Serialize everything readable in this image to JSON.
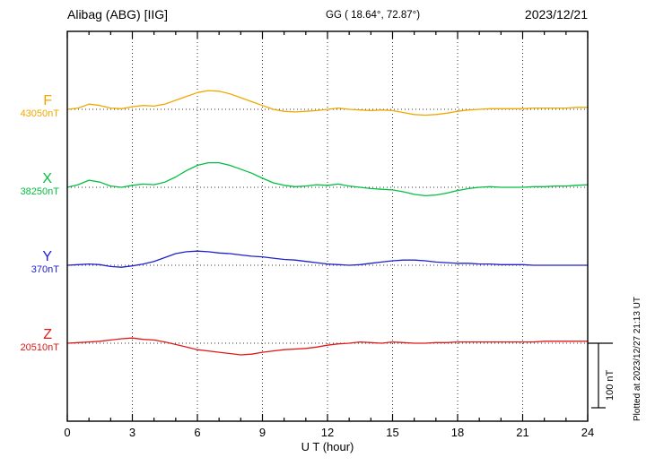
{
  "header": {
    "station": "Alibag (ABG)  [IIG]",
    "coords": "GG ( 18.64°,  72.87°)",
    "date": "2023/12/21"
  },
  "footer": {
    "xlabel": "U T (hour)",
    "plotted_note": "Plotted at 2023/12/27 21:13 UT",
    "scale_bar_label": "100 nT"
  },
  "colors": {
    "F": "#f0a800",
    "X": "#00c040",
    "Y": "#2020cc",
    "Z": "#e01818",
    "axis": "#000000",
    "grid": "#333333"
  },
  "chart_data": {
    "type": "line",
    "title": "Alibag (ABG) [IIG] magnetogram",
    "xlabel": "U T (hour)",
    "xlim": [
      0,
      24
    ],
    "xticks": [
      0,
      3,
      6,
      9,
      12,
      15,
      18,
      21,
      24
    ],
    "x_step_hours": 0.5,
    "grid": "vertical-dotted-at-3h",
    "scale_bar_nT": 100,
    "series": [
      {
        "name": "F",
        "baseline_label": "43050nT",
        "color": "#f0a800",
        "values_nT": [
          0,
          2,
          8,
          6,
          2,
          1,
          4,
          6,
          5,
          8,
          14,
          20,
          26,
          29,
          28,
          24,
          18,
          12,
          6,
          0,
          -3,
          -4,
          -3,
          -2,
          0,
          2,
          0,
          -1,
          -2,
          -1,
          -2,
          -5,
          -8,
          -9,
          -8,
          -6,
          -3,
          -1,
          0,
          1,
          1,
          1,
          1,
          2,
          2,
          2,
          2,
          3,
          3
        ]
      },
      {
        "name": "X",
        "baseline_label": "38250nT",
        "color": "#00c040",
        "values_nT": [
          0,
          4,
          11,
          8,
          2,
          0,
          3,
          5,
          4,
          8,
          16,
          26,
          34,
          38,
          38,
          34,
          28,
          22,
          14,
          7,
          3,
          1,
          2,
          4,
          3,
          5,
          2,
          0,
          -2,
          -3,
          -4,
          -7,
          -11,
          -13,
          -12,
          -9,
          -5,
          -2,
          0,
          1,
          0,
          0,
          0,
          1,
          1,
          2,
          2,
          3,
          4
        ]
      },
      {
        "name": "Y",
        "baseline_label": "370nT",
        "color": "#2020cc",
        "values_nT": [
          0,
          1,
          2,
          1,
          -2,
          -3,
          -1,
          2,
          6,
          12,
          18,
          21,
          22,
          21,
          19,
          18,
          16,
          14,
          13,
          11,
          9,
          8,
          6,
          4,
          2,
          1,
          0,
          1,
          3,
          5,
          7,
          8,
          8,
          7,
          5,
          4,
          3,
          3,
          2,
          2,
          1,
          1,
          1,
          0,
          0,
          0,
          0,
          0,
          0
        ]
      },
      {
        "name": "Z",
        "baseline_label": "20510nT",
        "color": "#e01818",
        "values_nT": [
          0,
          1,
          2,
          3,
          5,
          7,
          8,
          6,
          5,
          2,
          -2,
          -6,
          -10,
          -12,
          -14,
          -16,
          -18,
          -17,
          -14,
          -12,
          -10,
          -9,
          -8,
          -6,
          -3,
          -1,
          0,
          2,
          1,
          0,
          2,
          1,
          0,
          0,
          1,
          1,
          2,
          2,
          2,
          2,
          2,
          2,
          2,
          2,
          3,
          3,
          3,
          3,
          3
        ]
      }
    ]
  }
}
